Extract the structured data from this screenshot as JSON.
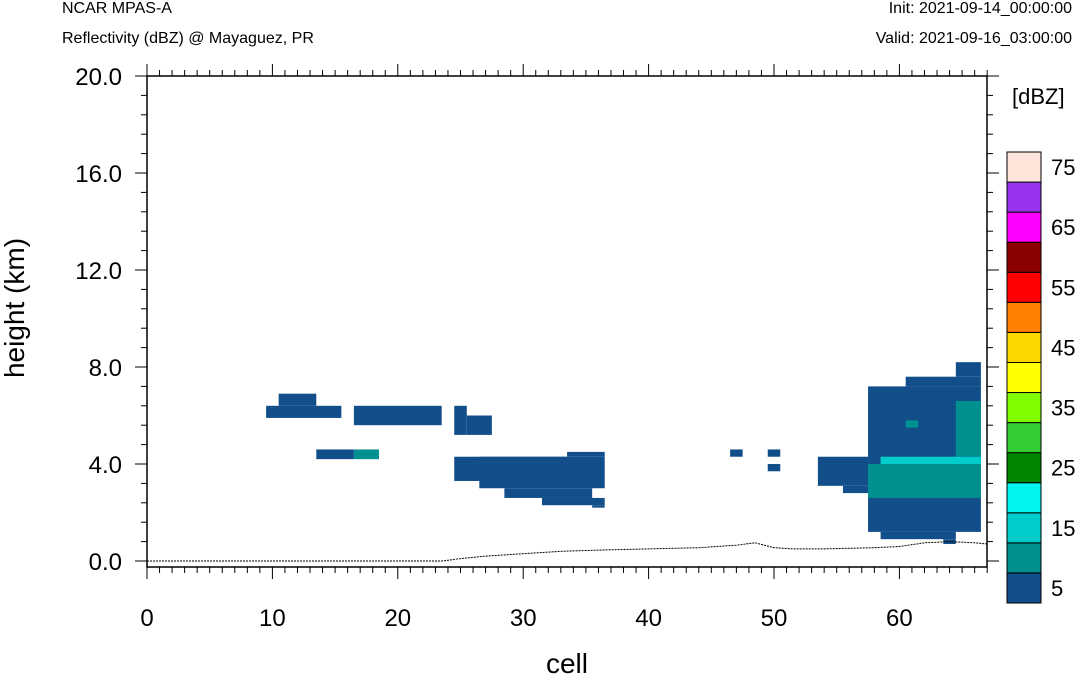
{
  "header": {
    "model": "NCAR MPAS-A",
    "field": "Reflectivity (dBZ) @ Mayaguez, PR",
    "init": "Init: 2021-09-14_00:00:00",
    "valid": "Valid: 2021-09-16_03:00:00"
  },
  "chart_data": {
    "type": "heatmap",
    "xlabel": "cell",
    "ylabel": "height (km)",
    "xlim": [
      0,
      67
    ],
    "ylim": [
      0,
      20
    ],
    "x_ticks": [
      "0",
      "10",
      "20",
      "30",
      "40",
      "50",
      "60"
    ],
    "y_ticks": [
      "0.0",
      "4.0",
      "8.0",
      "12.0",
      "16.0",
      "20.0"
    ],
    "colorbar": {
      "unit": "[dBZ]",
      "levels": [
        5,
        10,
        15,
        20,
        25,
        30,
        35,
        40,
        45,
        50,
        55,
        60,
        65,
        70,
        75
      ],
      "labels": [
        "5",
        "15",
        "25",
        "35",
        "45",
        "55",
        "65",
        "75"
      ],
      "colors": [
        "#124e8a",
        "#009090",
        "#00cccc",
        "#00f5f0",
        "#008600",
        "#33cc33",
        "#80ff00",
        "#ffff00",
        "#ffd700",
        "#ff8000",
        "#ff0000",
        "#8b0000",
        "#ff00ff",
        "#9933ee",
        "#ffe4da"
      ]
    },
    "reflectivity_regions": [
      {
        "x": [
          9.5,
          15.5
        ],
        "y": [
          5.9,
          6.4
        ],
        "dbz": 5
      },
      {
        "x": [
          10.5,
          13.5
        ],
        "y": [
          6.4,
          6.9
        ],
        "dbz": 5
      },
      {
        "x": [
          13.5,
          16.5
        ],
        "y": [
          4.2,
          4.6
        ],
        "dbz": 5
      },
      {
        "x": [
          16.5,
          18.5
        ],
        "y": [
          4.2,
          4.6
        ],
        "dbz": 10
      },
      {
        "x": [
          16.5,
          23.5
        ],
        "y": [
          5.6,
          6.4
        ],
        "dbz": 5
      },
      {
        "x": [
          24.5,
          25.5
        ],
        "y": [
          5.2,
          6.4
        ],
        "dbz": 5
      },
      {
        "x": [
          25.5,
          27.5
        ],
        "y": [
          5.2,
          6.0
        ],
        "dbz": 5
      },
      {
        "x": [
          24.5,
          33.5
        ],
        "y": [
          3.3,
          4.3
        ],
        "dbz": 5
      },
      {
        "x": [
          26.5,
          36.5
        ],
        "y": [
          3.0,
          4.3
        ],
        "dbz": 5
      },
      {
        "x": [
          28.5,
          35.5
        ],
        "y": [
          2.6,
          3.0
        ],
        "dbz": 5
      },
      {
        "x": [
          31.5,
          36.5
        ],
        "y": [
          2.3,
          2.6
        ],
        "dbz": 5
      },
      {
        "x": [
          35.5,
          36.5
        ],
        "y": [
          2.2,
          2.3
        ],
        "dbz": 5
      },
      {
        "x": [
          33.5,
          36.5
        ],
        "y": [
          4.3,
          4.5
        ],
        "dbz": 5
      },
      {
        "x": [
          46.5,
          47.5
        ],
        "y": [
          4.3,
          4.6
        ],
        "dbz": 5
      },
      {
        "x": [
          49.5,
          50.5
        ],
        "y": [
          4.3,
          4.6
        ],
        "dbz": 5
      },
      {
        "x": [
          49.5,
          50.5
        ],
        "y": [
          3.7,
          4.0
        ],
        "dbz": 5
      },
      {
        "x": [
          53.5,
          57.5
        ],
        "y": [
          3.1,
          4.3
        ],
        "dbz": 5
      },
      {
        "x": [
          55.5,
          57.5
        ],
        "y": [
          2.8,
          3.1
        ],
        "dbz": 5
      },
      {
        "x": [
          57.5,
          66.5
        ],
        "y": [
          1.2,
          7.2
        ],
        "dbz": 5
      },
      {
        "x": [
          60.5,
          66.5
        ],
        "y": [
          7.2,
          7.6
        ],
        "dbz": 5
      },
      {
        "x": [
          64.5,
          66.5
        ],
        "y": [
          7.6,
          8.2
        ],
        "dbz": 5
      },
      {
        "x": [
          58.5,
          64.5
        ],
        "y": [
          0.9,
          1.2
        ],
        "dbz": 5
      },
      {
        "x": [
          63.5,
          64.5
        ],
        "y": [
          0.7,
          0.9
        ],
        "dbz": 5
      },
      {
        "x": [
          57.5,
          66.5
        ],
        "y": [
          2.6,
          4.0
        ],
        "dbz": 10
      },
      {
        "x": [
          58.5,
          66.5
        ],
        "y": [
          4.0,
          4.3
        ],
        "dbz": 15
      },
      {
        "x": [
          64.5,
          66.5
        ],
        "y": [
          4.3,
          6.6
        ],
        "dbz": 10
      },
      {
        "x": [
          60.5,
          61.5
        ],
        "y": [
          5.5,
          5.8
        ],
        "dbz": 10
      }
    ],
    "terrain_km": [
      [
        0,
        0.0
      ],
      [
        23.5,
        0.0
      ],
      [
        25,
        0.1
      ],
      [
        27,
        0.2
      ],
      [
        30,
        0.3
      ],
      [
        33,
        0.4
      ],
      [
        36,
        0.45
      ],
      [
        40,
        0.5
      ],
      [
        44,
        0.55
      ],
      [
        47,
        0.65
      ],
      [
        48.5,
        0.75
      ],
      [
        50,
        0.55
      ],
      [
        51.5,
        0.5
      ],
      [
        54,
        0.5
      ],
      [
        58,
        0.55
      ],
      [
        60,
        0.6
      ],
      [
        62,
        0.75
      ],
      [
        64,
        0.8
      ],
      [
        66,
        0.75
      ],
      [
        67,
        0.7
      ]
    ]
  }
}
